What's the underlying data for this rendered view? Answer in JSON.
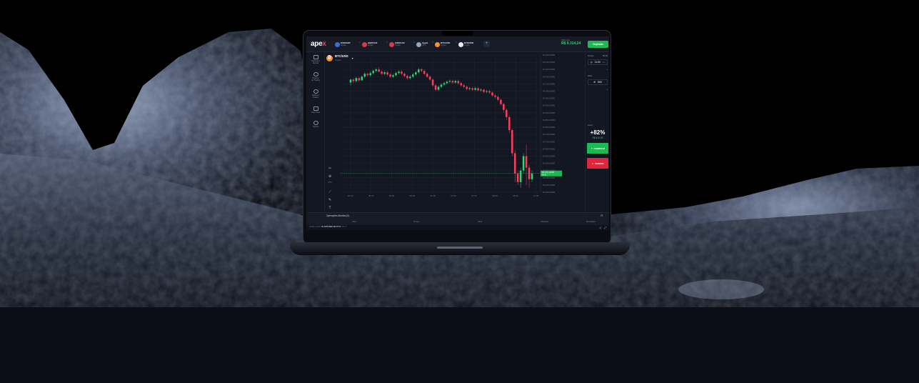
{
  "app": {
    "logo_text": "ape",
    "logo_accent": "x",
    "asset_tabs": [
      {
        "name": "EUR/GBP",
        "type": "Opção",
        "color": "#3a6fd8"
      },
      {
        "name": "GBP/CHF",
        "type": "Opção",
        "color": "#d83a4a"
      },
      {
        "name": "USD/CAD",
        "type": "Opção",
        "color": "#d83a4a"
      },
      {
        "name": "Apple",
        "type": "OTC",
        "color": "#9aa3b5"
      },
      {
        "name": "BTC/USD",
        "type": "Crypto",
        "color": "#f7931a"
      },
      {
        "name": "ETH/USD",
        "type": "Crypto",
        "color": "#e6e9f0"
      }
    ],
    "tab_close": "×",
    "add_tab": "+",
    "balance": {
      "label": "Saldo real",
      "value": "R$ 9.314,24"
    },
    "deposit_label": "Depósito"
  },
  "leftnav": [
    {
      "label1": "Operações",
      "label2": "Abertas"
    },
    {
      "label1": "Histórico",
      "label2": "de Trading"
    },
    {
      "label1": "Melhores",
      "label2": "Traders"
    },
    {
      "label1": "Copy Trade",
      "label2": ""
    },
    {
      "label1": "Suporte",
      "label2": ""
    }
  ],
  "chart_header": {
    "pair": "BTC/USD",
    "type": "Crypto",
    "coin_symbol": "₿",
    "caret": "▾"
  },
  "tools": [
    "✂",
    "⊕",
    "⌒",
    "⟋",
    "✎",
    "T"
  ],
  "chart_data": {
    "type": "candlestick",
    "x_ticks": [
      "04:30",
      "05:00",
      "05:30",
      "06:00",
      "06:30",
      "07:00",
      "07:30",
      "08:00",
      "08:30",
      "11:00"
    ],
    "y_ticks": [
      "64.300,00000",
      "64.250,00000",
      "64.200,00000",
      "64.150,00000",
      "64.100,00000",
      "64.050,00000",
      "64.000,00000",
      "63.950,00000",
      "63.900,00000",
      "63.850,00000",
      "63.800,00000",
      "63.750,00000",
      "63.700,00000",
      "63.650,00000",
      "63.600,00000",
      "63.550,00000",
      "63.500,00000",
      "63.450,00000",
      "63.400,00000",
      "63.350,00000"
    ],
    "ylim": [
      63350,
      64300
    ],
    "current_price": "63.470,12000",
    "current_price_sub": "00:31",
    "candles": [
      [
        64110,
        64130,
        64090,
        64135
      ],
      [
        64130,
        64120,
        64105,
        64140
      ],
      [
        64120,
        64140,
        64110,
        64150
      ],
      [
        64140,
        64125,
        64115,
        64150
      ],
      [
        64125,
        64150,
        64120,
        64160
      ],
      [
        64150,
        64170,
        64140,
        64180
      ],
      [
        64170,
        64160,
        64150,
        64180
      ],
      [
        64160,
        64175,
        64150,
        64185
      ],
      [
        64175,
        64190,
        64165,
        64200
      ],
      [
        64190,
        64200,
        64180,
        64210
      ],
      [
        64200,
        64185,
        64180,
        64215
      ],
      [
        64185,
        64170,
        64160,
        64195
      ],
      [
        64170,
        64180,
        64160,
        64190
      ],
      [
        64180,
        64165,
        64155,
        64190
      ],
      [
        64165,
        64150,
        64140,
        64175
      ],
      [
        64150,
        64160,
        64140,
        64170
      ],
      [
        64160,
        64175,
        64150,
        64185
      ],
      [
        64175,
        64185,
        64165,
        64195
      ],
      [
        64185,
        64170,
        64160,
        64195
      ],
      [
        64170,
        64155,
        64145,
        64180
      ],
      [
        64155,
        64140,
        64130,
        64165
      ],
      [
        64140,
        64150,
        64130,
        64160
      ],
      [
        64150,
        64165,
        64140,
        64175
      ],
      [
        64165,
        64180,
        64155,
        64190
      ],
      [
        64180,
        64200,
        64170,
        64210
      ],
      [
        64200,
        64190,
        64180,
        64210
      ],
      [
        64190,
        64170,
        64160,
        64200
      ],
      [
        64170,
        64150,
        64140,
        64180
      ],
      [
        64150,
        64130,
        64120,
        64160
      ],
      [
        64130,
        64090,
        64080,
        64140
      ],
      [
        64090,
        64060,
        64050,
        64100
      ],
      [
        64060,
        64080,
        64050,
        64090
      ],
      [
        64080,
        64095,
        64070,
        64105
      ],
      [
        64095,
        64105,
        64085,
        64115
      ],
      [
        64105,
        64115,
        64095,
        64125
      ],
      [
        64115,
        64120,
        64105,
        64130
      ],
      [
        64120,
        64110,
        64100,
        64130
      ],
      [
        64110,
        64120,
        64100,
        64130
      ],
      [
        64120,
        64105,
        64095,
        64130
      ],
      [
        64105,
        64090,
        64080,
        64115
      ],
      [
        64090,
        64080,
        64070,
        64100
      ],
      [
        64080,
        64065,
        64055,
        64090
      ],
      [
        64065,
        64070,
        64055,
        64080
      ],
      [
        64070,
        64060,
        64050,
        64080
      ],
      [
        64060,
        64070,
        64050,
        64080
      ],
      [
        64070,
        64055,
        64045,
        64080
      ],
      [
        64055,
        64060,
        64045,
        64070
      ],
      [
        64060,
        64045,
        64035,
        64065
      ],
      [
        64045,
        64050,
        64035,
        64060
      ],
      [
        64050,
        64040,
        64030,
        64060
      ],
      [
        64040,
        64020,
        64010,
        64050
      ],
      [
        64020,
        64010,
        64000,
        64030
      ],
      [
        64010,
        63990,
        63980,
        64020
      ],
      [
        63990,
        63960,
        63950,
        64000
      ],
      [
        63960,
        63920,
        63900,
        63970
      ],
      [
        63920,
        63870,
        63850,
        63930
      ],
      [
        63870,
        63780,
        63760,
        63880
      ],
      [
        63780,
        63620,
        63600,
        63790
      ],
      [
        63620,
        63480,
        63420,
        63640
      ],
      [
        63480,
        63420,
        63400,
        63500
      ],
      [
        63420,
        63500,
        63380,
        63520
      ],
      [
        63500,
        63600,
        63480,
        63620
      ],
      [
        63600,
        63520,
        63400,
        63680
      ],
      [
        63520,
        63440,
        63380,
        63540
      ],
      [
        63440,
        63480,
        63420,
        63500
      ]
    ]
  },
  "rpanel": {
    "time_label": "Tempo",
    "time_mode": "00:05",
    "time_value": "11:00",
    "time_unit": "1m",
    "value_label": "Valor",
    "amount": "500",
    "minus": "−",
    "plus": "+",
    "payout_label": "Lucro",
    "payout": "+82%",
    "payout_value": "R$ 410,00",
    "buy_label": "COMPRAR",
    "sell_label": "VENDER"
  },
  "bottom": {
    "title": "Operações Abertas (0)",
    "columns": [
      "Ativo",
      "Tempo",
      "Valor",
      "Abertura",
      "Resultado"
    ]
  },
  "status": {
    "prefix": "HORA LOCAL",
    "time": "01 OUT 2023 18:17:01",
    "tz": "UTC-3"
  }
}
